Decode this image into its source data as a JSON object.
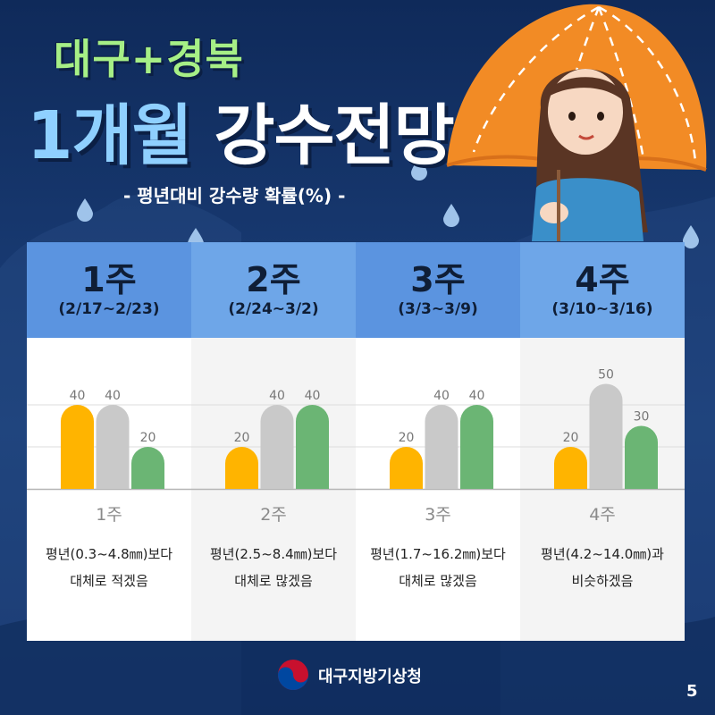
{
  "header": {
    "line1": "대구+경북",
    "line2_accent": "1개월",
    "line2_white": "강수전망",
    "subtitle": "- 평년대비 강수량 확률(%) -"
  },
  "colors": {
    "below": "#ffb400",
    "normal": "#c9c9c9",
    "above": "#6bb574",
    "header_a": "#5b94e0",
    "header_b": "#6ea6e8",
    "body_a": "#ffffff",
    "body_b": "#f4f4f4"
  },
  "chart_data": [
    {
      "type": "bar",
      "week": "1주",
      "date_range": "(2/17~2/23)",
      "categories": [
        "below",
        "normal",
        "above"
      ],
      "values": [
        40,
        40,
        20
      ],
      "xlabel": "1주",
      "desc_line1": "평년(0.3~4.8㎜)보다",
      "desc_line2": "대체로 적겠음",
      "ylim": [
        0,
        50
      ]
    },
    {
      "type": "bar",
      "week": "2주",
      "date_range": "(2/24~3/2)",
      "categories": [
        "below",
        "normal",
        "above"
      ],
      "values": [
        20,
        40,
        40
      ],
      "xlabel": "2주",
      "desc_line1": "평년(2.5~8.4㎜)보다",
      "desc_line2": "대체로 많겠음",
      "ylim": [
        0,
        50
      ]
    },
    {
      "type": "bar",
      "week": "3주",
      "date_range": "(3/3~3/9)",
      "categories": [
        "below",
        "normal",
        "above"
      ],
      "values": [
        20,
        40,
        40
      ],
      "xlabel": "3주",
      "desc_line1": "평년(1.7~16.2㎜)보다",
      "desc_line2": "대체로 많겠음",
      "ylim": [
        0,
        50
      ]
    },
    {
      "type": "bar",
      "week": "4주",
      "date_range": "(3/10~3/16)",
      "categories": [
        "below",
        "normal",
        "above"
      ],
      "values": [
        20,
        50,
        30
      ],
      "xlabel": "4주",
      "desc_line1": "평년(4.2~14.0㎜)과",
      "desc_line2": "비슷하겠음",
      "ylim": [
        0,
        50
      ]
    }
  ],
  "footer": {
    "org": "대구지방기상청",
    "logo_icon": "taegeuk-logo-icon"
  },
  "page": "5"
}
